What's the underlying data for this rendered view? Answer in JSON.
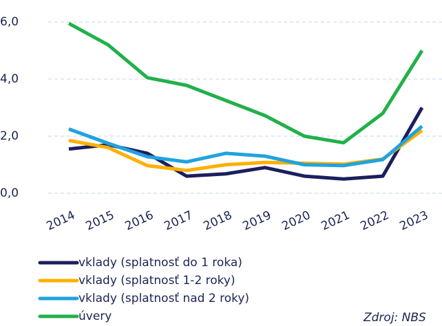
{
  "chart_data": {
    "type": "line",
    "categories": [
      "2014",
      "2015",
      "2016",
      "2017",
      "2018",
      "2019",
      "2020",
      "2021",
      "2022",
      "2023"
    ],
    "series": [
      {
        "name": "vklady (splatnosť do 1 roka)",
        "color": "#1b1f5e",
        "values": [
          1.55,
          1.7,
          1.4,
          0.6,
          0.68,
          0.9,
          0.6,
          0.5,
          0.6,
          3.0
        ]
      },
      {
        "name": "vklady (splatnosť 1-2 roky)",
        "color": "#ffb000",
        "values": [
          1.85,
          1.6,
          0.97,
          0.8,
          1.0,
          1.08,
          1.05,
          1.02,
          1.2,
          2.2
        ]
      },
      {
        "name": "vklady (splatnosť nad 2 roky)",
        "color": "#1fa3e0",
        "values": [
          2.25,
          1.75,
          1.28,
          1.1,
          1.4,
          1.3,
          1.0,
          0.97,
          1.18,
          2.35
        ]
      },
      {
        "name": "úvery",
        "color": "#22b04b",
        "values": [
          5.95,
          5.2,
          4.05,
          3.78,
          3.25,
          2.72,
          2.0,
          1.77,
          2.8,
          5.0
        ]
      }
    ],
    "ylim": [
      0,
      6
    ],
    "yticks": [
      {
        "value": 0,
        "label": "0,0"
      },
      {
        "value": 2,
        "label": "2,0"
      },
      {
        "value": 4,
        "label": "4,0"
      },
      {
        "value": 6,
        "label": "6,0"
      }
    ],
    "grid": true,
    "source": "Zdroj: NBS"
  }
}
